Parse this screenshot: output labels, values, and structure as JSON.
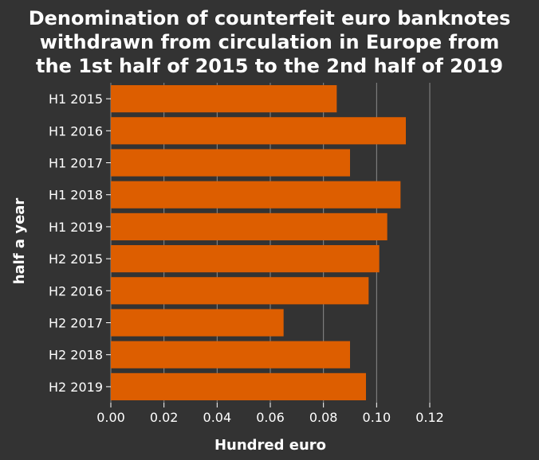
{
  "chart_data": {
    "type": "bar",
    "orientation": "horizontal",
    "title_lines": [
      "Denomination of counterfeit euro banknotes",
      "withdrawn from circulation in Europe from",
      "the 1st half of 2015 to the 2nd half of 2019"
    ],
    "xlabel": "Hundred euro",
    "ylabel": "half a year",
    "xlim": [
      0,
      0.12
    ],
    "xticks": [
      "0.00",
      "0.02",
      "0.04",
      "0.06",
      "0.08",
      "0.10",
      "0.12"
    ],
    "categories": [
      "H1 2015",
      "H1 2016",
      "H1 2017",
      "H1 2018",
      "H1 2019",
      "H2 2015",
      "H2 2016",
      "H2 2017",
      "H2 2018",
      "H2 2019"
    ],
    "values": [
      0.085,
      0.111,
      0.09,
      0.109,
      0.104,
      0.101,
      0.097,
      0.065,
      0.09,
      0.096
    ],
    "grid": true,
    "bar_color": "#dd5e00",
    "background_color": "#333333"
  }
}
